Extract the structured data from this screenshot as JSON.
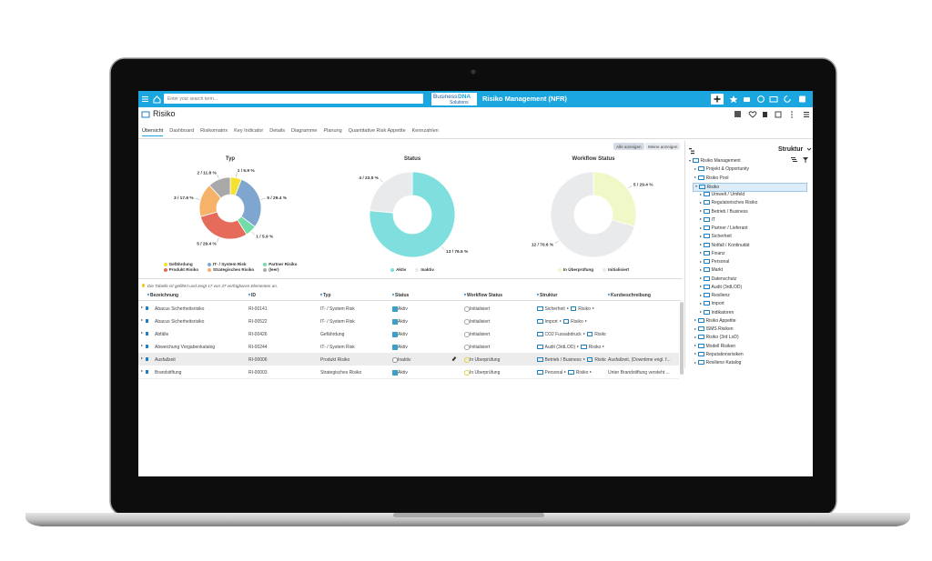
{
  "header": {
    "search_placeholder": "Enter your search term...",
    "logo": [
      "Business",
      "DNA",
      "Solutions"
    ],
    "app_title": "Risiko Management (NFR)"
  },
  "page": {
    "title": "Risiko",
    "tabs": [
      "Übersicht",
      "Dashboard",
      "Risikomatrix",
      "Key Indicator",
      "Details",
      "Diagramme",
      "Planung",
      "Quantitative Risk Appetite",
      "Kennzahlen"
    ],
    "view_buttons": [
      "Alle anzeigen",
      "Meine anzeigen"
    ]
  },
  "chart_data": [
    {
      "type": "pie",
      "title": "Typ",
      "categories": [
        "Gefährdung",
        "IT- / System Risk",
        "Partner Risiko",
        "Produkt Risiko",
        "Strategisches Risiko",
        "(leer)"
      ],
      "values": [
        1,
        5,
        1,
        5,
        3,
        2
      ],
      "value_labels": [
        "1 / 5.9 %",
        "5 / 29.4 %",
        "1 / 5.9 %",
        "5 / 29.4 %",
        "3 / 17.6 %",
        "2 / 11.8 %"
      ],
      "colors": [
        "#f5e132",
        "#7fa6cf",
        "#6fdcaa",
        "#e56b5a",
        "#f7b26a",
        "#a9a9a9"
      ]
    },
    {
      "type": "pie",
      "title": "Status",
      "categories": [
        "Aktiv",
        "Inaktiv"
      ],
      "values": [
        13,
        4
      ],
      "value_labels": [
        "13 / 76.5 %",
        "4 / 23.5 %"
      ],
      "colors": [
        "#7fdede",
        "#e8eaec"
      ]
    },
    {
      "type": "pie",
      "title": "Workflow Status",
      "categories": [
        "In Überprüfung",
        "Initialisiert"
      ],
      "values": [
        5,
        12
      ],
      "value_labels": [
        "5 / 29.4 %",
        "12 / 70.6 %"
      ],
      "colors": [
        "#eff8c6",
        "#e8eaec"
      ]
    }
  ],
  "table": {
    "info": "Die Tabelle ist gefiltert und zeigt 17 von 37 verfügbaren Elementen an.",
    "columns": [
      "Bezeichnung",
      "ID",
      "Typ",
      "Status",
      "Workflow Status",
      "Struktur",
      "Kurzbeschreibung"
    ],
    "rows": [
      {
        "name": "Abacus Sicherheitsrisiko",
        "id": "RI-00141",
        "type": "IT- / System Risk",
        "status": "Aktiv",
        "workflow": "Initialisiert",
        "struktur": [
          "Sicherheit",
          "Risiko"
        ]
      },
      {
        "name": "Abacus Sicherheitsrisiko",
        "id": "RI-00522",
        "type": "IT- / System Risk",
        "status": "Aktiv",
        "workflow": "Initialisiert",
        "struktur": [
          "Import",
          "Risiko"
        ]
      },
      {
        "name": "Abfälle",
        "id": "RI-00426",
        "type": "Gefährdung",
        "status": "Aktiv",
        "workflow": "Initialisiert",
        "struktur": [
          "CO2 Fussabdruck",
          "Risiko"
        ]
      },
      {
        "name": "Abweichung Vorgabenkatalog",
        "id": "RI-00244",
        "type": "IT- / System Risk",
        "status": "Aktiv",
        "workflow": "Initialisiert",
        "struktur": [
          "Audit (3rdLOD)",
          "Risiko"
        ]
      },
      {
        "name": "Ausfallzeit",
        "id": "RI-00006",
        "type": "Produkt Risiko",
        "status": "Inaktiv",
        "workflow": "In Überprüfung",
        "struktur": [
          "Betrieb / Business",
          "Risiko"
        ],
        "description": "Ausfallzeit, (Downtime engl. f..."
      },
      {
        "name": "Brandstiftung",
        "id": "RI-00003",
        "type": "Strategisches Risiko",
        "status": "Aktiv",
        "workflow": "In Überprüfung",
        "struktur": [
          "Personal",
          "Risiko"
        ],
        "description": "Unter Brandstiftung versteht ..."
      }
    ]
  },
  "tree": {
    "title": "Struktur",
    "items": [
      {
        "label": "Risiko Management",
        "children": [
          {
            "label": "Projekt & Opportunity"
          },
          {
            "label": "Risiko Pool"
          },
          {
            "label": "Risiko",
            "children": [
              {
                "label": "Umwelt / Umfeld"
              },
              {
                "label": "Regulatorisches Risiko"
              },
              {
                "label": "Betrieb / Business"
              },
              {
                "label": "IT"
              },
              {
                "label": "Partner / Lieferant"
              },
              {
                "label": "Sicherheit"
              },
              {
                "label": "Notfall / Kontinuität"
              },
              {
                "label": "Finanz"
              },
              {
                "label": "Personal"
              },
              {
                "label": "Markt"
              },
              {
                "label": "Datenschutz"
              },
              {
                "label": "Audit (3rdLOD)"
              },
              {
                "label": "Resilienz"
              },
              {
                "label": "Import"
              },
              {
                "label": "Indikatoren"
              }
            ]
          },
          {
            "label": "Risiko Appetite"
          },
          {
            "label": "ISMS Risiken"
          },
          {
            "label": "Risiko (3rd LoD)"
          },
          {
            "label": "Modell Risiken"
          },
          {
            "label": "Reputationsrisiken"
          },
          {
            "label": "Resilienz-Katalog"
          }
        ]
      }
    ]
  }
}
